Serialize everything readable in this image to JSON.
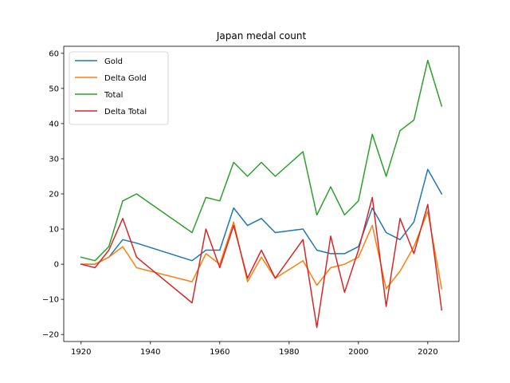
{
  "chart_data": {
    "type": "line",
    "title": "Japan medal count",
    "xlabel": "",
    "ylabel": "",
    "xlim": [
      1915,
      2029
    ],
    "ylim": [
      -22,
      62
    ],
    "xticks": [
      1920,
      1940,
      1960,
      1980,
      2000,
      2020
    ],
    "yticks": [
      -20,
      -10,
      0,
      10,
      20,
      30,
      40,
      50,
      60
    ],
    "grid": false,
    "legend_position": "top-left",
    "x": [
      1920,
      1924,
      1928,
      1932,
      1936,
      1952,
      1956,
      1960,
      1964,
      1968,
      1972,
      1976,
      1984,
      1988,
      1992,
      1996,
      2000,
      2004,
      2008,
      2012,
      2016,
      2020,
      2024
    ],
    "series": [
      {
        "name": "Gold",
        "color": "#1f77b4",
        "values": [
          0,
          0,
          2,
          7,
          6,
          1,
          4,
          4,
          16,
          11,
          13,
          9,
          10,
          4,
          3,
          3,
          5,
          16,
          9,
          7,
          12,
          27,
          20
        ]
      },
      {
        "name": "Delta Gold",
        "color": "#ff7f0e",
        "values": [
          0,
          0,
          2,
          5,
          -1,
          -5,
          3,
          0,
          12,
          -5,
          2,
          -4,
          1,
          -6,
          -1,
          0,
          2,
          11,
          -7,
          -2,
          5,
          15,
          -7
        ]
      },
      {
        "name": "Total",
        "color": "#2ca02c",
        "values": [
          2,
          1,
          5,
          18,
          20,
          9,
          19,
          18,
          29,
          25,
          29,
          25,
          32,
          14,
          22,
          14,
          18,
          37,
          25,
          38,
          41,
          58,
          45
        ]
      },
      {
        "name": "Delta Total",
        "color": "#d62728",
        "values": [
          0,
          -1,
          4,
          13,
          2,
          -11,
          10,
          -1,
          11,
          -4,
          4,
          -4,
          7,
          -18,
          8,
          -8,
          4,
          19,
          -12,
          13,
          3,
          17,
          -13
        ]
      }
    ]
  }
}
